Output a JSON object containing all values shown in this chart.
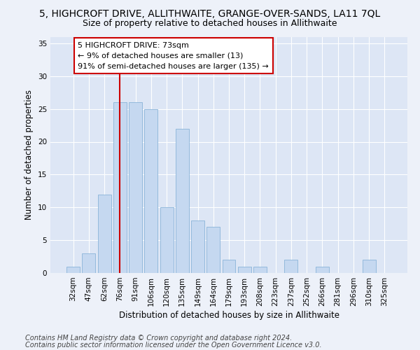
{
  "title": "5, HIGHCROFT DRIVE, ALLITHWAITE, GRANGE-OVER-SANDS, LA11 7QL",
  "subtitle": "Size of property relative to detached houses in Allithwaite",
  "xlabel": "Distribution of detached houses by size in Allithwaite",
  "ylabel": "Number of detached properties",
  "bar_labels": [
    "32sqm",
    "47sqm",
    "62sqm",
    "76sqm",
    "91sqm",
    "106sqm",
    "120sqm",
    "135sqm",
    "149sqm",
    "164sqm",
    "179sqm",
    "193sqm",
    "208sqm",
    "223sqm",
    "237sqm",
    "252sqm",
    "266sqm",
    "281sqm",
    "296sqm",
    "310sqm",
    "325sqm"
  ],
  "bar_values": [
    1,
    3,
    12,
    26,
    26,
    25,
    10,
    22,
    8,
    7,
    2,
    1,
    1,
    0,
    2,
    0,
    1,
    0,
    0,
    2,
    0
  ],
  "bar_color": "#c5d8f0",
  "bar_edgecolor": "#8ab4d8",
  "ylim": [
    0,
    36
  ],
  "yticks": [
    0,
    5,
    10,
    15,
    20,
    25,
    30,
    35
  ],
  "vline_x": 2.97,
  "vline_color": "#cc0000",
  "annotation_text": "5 HIGHCROFT DRIVE: 73sqm\n← 9% of detached houses are smaller (13)\n91% of semi-detached houses are larger (135) →",
  "footnote1": "Contains HM Land Registry data © Crown copyright and database right 2024.",
  "footnote2": "Contains public sector information licensed under the Open Government Licence v3.0.",
  "bg_color": "#edf1f9",
  "plot_bg_color": "#dde6f5",
  "grid_color": "#ffffff",
  "title_fontsize": 10,
  "subtitle_fontsize": 9,
  "xlabel_fontsize": 8.5,
  "ylabel_fontsize": 8.5,
  "tick_fontsize": 7.5,
  "footnote_fontsize": 7,
  "annot_fontsize": 8
}
